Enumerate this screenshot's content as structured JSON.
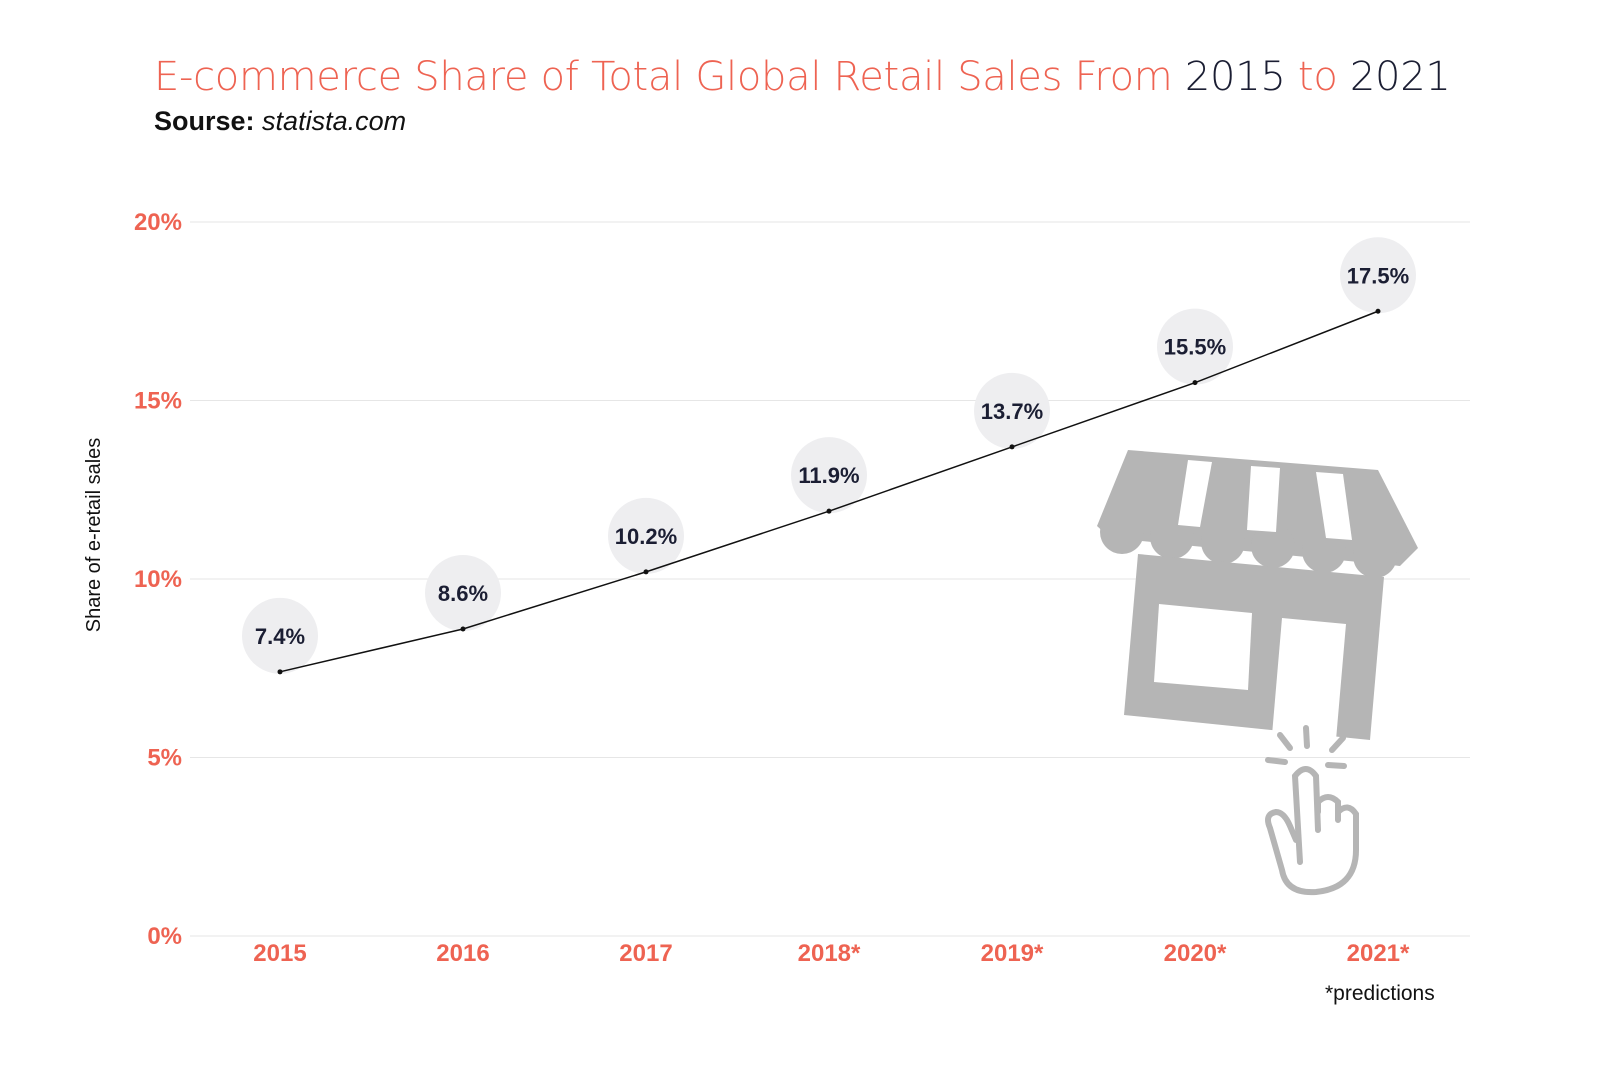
{
  "title": {
    "part1": "E-commerce Share of Total Global Retail Sales From ",
    "year_start": "2015",
    "part2": " to ",
    "year_end": "2021"
  },
  "source": {
    "label": "Sourse:",
    "value": "statista.com"
  },
  "footnote": "*predictions",
  "colors": {
    "accent": "#ee6352",
    "dark": "#1b1e33",
    "bubble": "#eeeef0",
    "grid": "#e6e6e6",
    "icon": "#b5b5b5"
  },
  "icon": "storefront-click-icon",
  "chart_data": {
    "type": "line",
    "title": "E-commerce Share of Total Global Retail Sales From 2015 to 2021",
    "xlabel": "",
    "ylabel": "Share of e-retail sales",
    "categories": [
      "2015",
      "2016",
      "2017",
      "2018*",
      "2019*",
      "2020*",
      "2021*"
    ],
    "values": [
      7.4,
      8.6,
      10.2,
      11.9,
      13.7,
      15.5,
      17.5
    ],
    "data_labels": [
      "7.4%",
      "8.6%",
      "10.2%",
      "11.9%",
      "13.7%",
      "15.5%",
      "17.5%"
    ],
    "ylim": [
      0,
      20
    ],
    "yticks": [
      0,
      5,
      10,
      15,
      20
    ],
    "ytick_labels": [
      "0%",
      "5%",
      "10%",
      "15%",
      "20%"
    ],
    "grid": true
  }
}
